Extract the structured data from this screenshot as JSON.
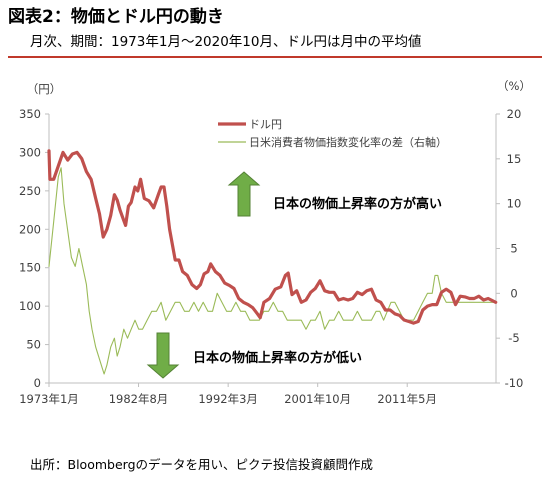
{
  "header": {
    "title": "図表2：物価とドル円の動き",
    "subtitle": "月次、期間：1973年1月～2020年10月、ドル円は月中の平均値"
  },
  "footer": {
    "source": "出所：Bloombergのデータを用い、ピクテ投信投資顧問作成"
  },
  "chart_data": {
    "type": "line",
    "left_axis": {
      "unit_label": "（円）",
      "ylim": [
        0,
        350
      ],
      "ticks": [
        0,
        50,
        100,
        150,
        200,
        250,
        300,
        350
      ]
    },
    "right_axis": {
      "unit_label": "（%）",
      "ylim": [
        -10,
        20
      ],
      "ticks": [
        -10,
        -5,
        0,
        5,
        10,
        15,
        20
      ]
    },
    "x_axis": {
      "xlim": [
        1973.0,
        2020.83
      ],
      "ticks": [
        {
          "x": 1973.0,
          "label": "1973年1月"
        },
        {
          "x": 1982.58,
          "label": "1982年8月"
        },
        {
          "x": 1992.17,
          "label": "1992年3月"
        },
        {
          "x": 2001.75,
          "label": "2001年10月"
        },
        {
          "x": 2011.33,
          "label": "2011年5月"
        }
      ]
    },
    "grid": false,
    "legend_position": "top-center",
    "series": [
      {
        "name": "ドル円",
        "axis": "left",
        "color": "#c0504d",
        "x": [
          1973.0,
          1973.1,
          1973.5,
          1974.5,
          1975.0,
          1975.5,
          1976.0,
          1976.5,
          1977.0,
          1977.5,
          1978.0,
          1978.4,
          1978.8,
          1979.2,
          1979.6,
          1980.0,
          1980.3,
          1980.6,
          1980.9,
          1981.2,
          1981.5,
          1981.8,
          1982.2,
          1982.5,
          1982.8,
          1983.2,
          1983.7,
          1984.2,
          1984.7,
          1985.0,
          1985.3,
          1985.6,
          1985.9,
          1986.2,
          1986.5,
          1986.9,
          1987.3,
          1987.8,
          1988.3,
          1988.8,
          1989.2,
          1989.6,
          1990.0,
          1990.3,
          1990.8,
          1991.3,
          1991.8,
          1992.3,
          1992.8,
          1993.3,
          1993.8,
          1994.3,
          1994.8,
          1995.3,
          1995.6,
          1996.0,
          1996.6,
          1997.2,
          1997.8,
          1998.3,
          1998.6,
          1999.0,
          1999.5,
          2000.0,
          2000.5,
          2001.0,
          2001.5,
          2002.0,
          2002.5,
          2003.0,
          2003.5,
          2004.0,
          2004.5,
          2005.0,
          2005.5,
          2006.0,
          2006.5,
          2007.0,
          2007.5,
          2008.0,
          2008.5,
          2009.0,
          2009.5,
          2010.0,
          2010.5,
          2011.0,
          2011.5,
          2012.0,
          2012.5,
          2013.0,
          2013.5,
          2014.0,
          2014.5,
          2015.0,
          2015.5,
          2016.0,
          2016.5,
          2017.0,
          2017.5,
          2018.0,
          2018.5,
          2019.0,
          2019.5,
          2020.0,
          2020.8
        ],
        "values": [
          302,
          265,
          265,
          300,
          290,
          298,
          300,
          292,
          275,
          265,
          240,
          220,
          190,
          200,
          218,
          245,
          238,
          225,
          215,
          205,
          230,
          235,
          255,
          250,
          265,
          240,
          237,
          228,
          245,
          255,
          255,
          230,
          200,
          180,
          160,
          160,
          145,
          140,
          128,
          123,
          128,
          142,
          145,
          155,
          145,
          140,
          130,
          127,
          123,
          110,
          105,
          102,
          98,
          90,
          85,
          105,
          110,
          122,
          125,
          140,
          143,
          115,
          120,
          105,
          108,
          118,
          123,
          133,
          120,
          118,
          118,
          108,
          110,
          108,
          110,
          118,
          115,
          120,
          122,
          108,
          105,
          95,
          95,
          90,
          88,
          82,
          80,
          78,
          80,
          95,
          100,
          102,
          102,
          118,
          122,
          118,
          102,
          113,
          112,
          110,
          110,
          113,
          108,
          110,
          105
        ]
      },
      {
        "name": "日米消費者物価指数変化率の差（右軸）",
        "axis": "right",
        "color": "#9bbb59",
        "x": [
          1973.0,
          1973.5,
          1974.0,
          1974.3,
          1974.6,
          1975.0,
          1975.4,
          1975.8,
          1976.2,
          1976.6,
          1977.0,
          1977.3,
          1977.6,
          1978.0,
          1978.3,
          1978.6,
          1978.9,
          1979.2,
          1979.6,
          1980.0,
          1980.3,
          1980.6,
          1981.0,
          1981.4,
          1981.8,
          1982.2,
          1982.6,
          1983.0,
          1983.5,
          1984.0,
          1984.5,
          1985.0,
          1985.5,
          1986.0,
          1986.5,
          1987.0,
          1987.5,
          1988.0,
          1988.5,
          1989.0,
          1989.5,
          1990.0,
          1990.5,
          1991.0,
          1991.5,
          1992.0,
          1992.5,
          1993.0,
          1993.5,
          1994.0,
          1994.5,
          1995.0,
          1995.5,
          1996.0,
          1996.5,
          1997.0,
          1997.5,
          1998.0,
          1998.5,
          1999.0,
          1999.5,
          2000.0,
          2000.5,
          2001.0,
          2001.5,
          2002.0,
          2002.5,
          2003.0,
          2003.5,
          2004.0,
          2004.5,
          2005.0,
          2005.5,
          2006.0,
          2006.5,
          2007.0,
          2007.5,
          2008.0,
          2008.4,
          2008.8,
          2009.2,
          2009.6,
          2010.0,
          2010.5,
          2011.0,
          2011.5,
          2012.0,
          2012.5,
          2013.0,
          2013.5,
          2014.0,
          2014.3,
          2014.6,
          2015.0,
          2015.5,
          2016.0,
          2016.5,
          2017.0,
          2017.5,
          2018.0,
          2018.5,
          2019.0,
          2019.5,
          2020.0,
          2020.8
        ],
        "values": [
          3,
          8,
          13,
          14,
          10,
          7,
          4,
          3,
          5,
          3,
          1,
          -2,
          -4,
          -6,
          -7,
          -8,
          -9,
          -8,
          -6,
          -5,
          -7,
          -6,
          -4,
          -5,
          -4,
          -3,
          -4,
          -4,
          -3,
          -2,
          -2,
          -1,
          -3,
          -2,
          -1,
          -1,
          -2,
          -2,
          -1,
          -2,
          -1,
          -2,
          -2,
          0,
          -1,
          -2,
          -2,
          -1,
          -2,
          -2,
          -3,
          -3,
          -3,
          -2,
          -2,
          -1,
          -2,
          -2,
          -3,
          -3,
          -3,
          -3,
          -4,
          -3,
          -3,
          -2,
          -4,
          -3,
          -3,
          -2,
          -3,
          -3,
          -3,
          -2,
          -3,
          -3,
          -3,
          -2,
          -2,
          -3,
          -2,
          -1,
          -1,
          -2,
          -3,
          -3,
          -3,
          -2,
          -1,
          0,
          0,
          2,
          2,
          0,
          -1,
          -1,
          -1,
          -1,
          -1,
          -1,
          -1,
          -1,
          -1,
          -1,
          -1
        ]
      }
    ],
    "annotations": [
      {
        "text": "日本の物価上昇率の方が高い",
        "arrow": "up",
        "arrow_color": "#70ad47"
      },
      {
        "text": "日本の物価上昇率の方が低い",
        "arrow": "down",
        "arrow_color": "#70ad47"
      }
    ]
  }
}
